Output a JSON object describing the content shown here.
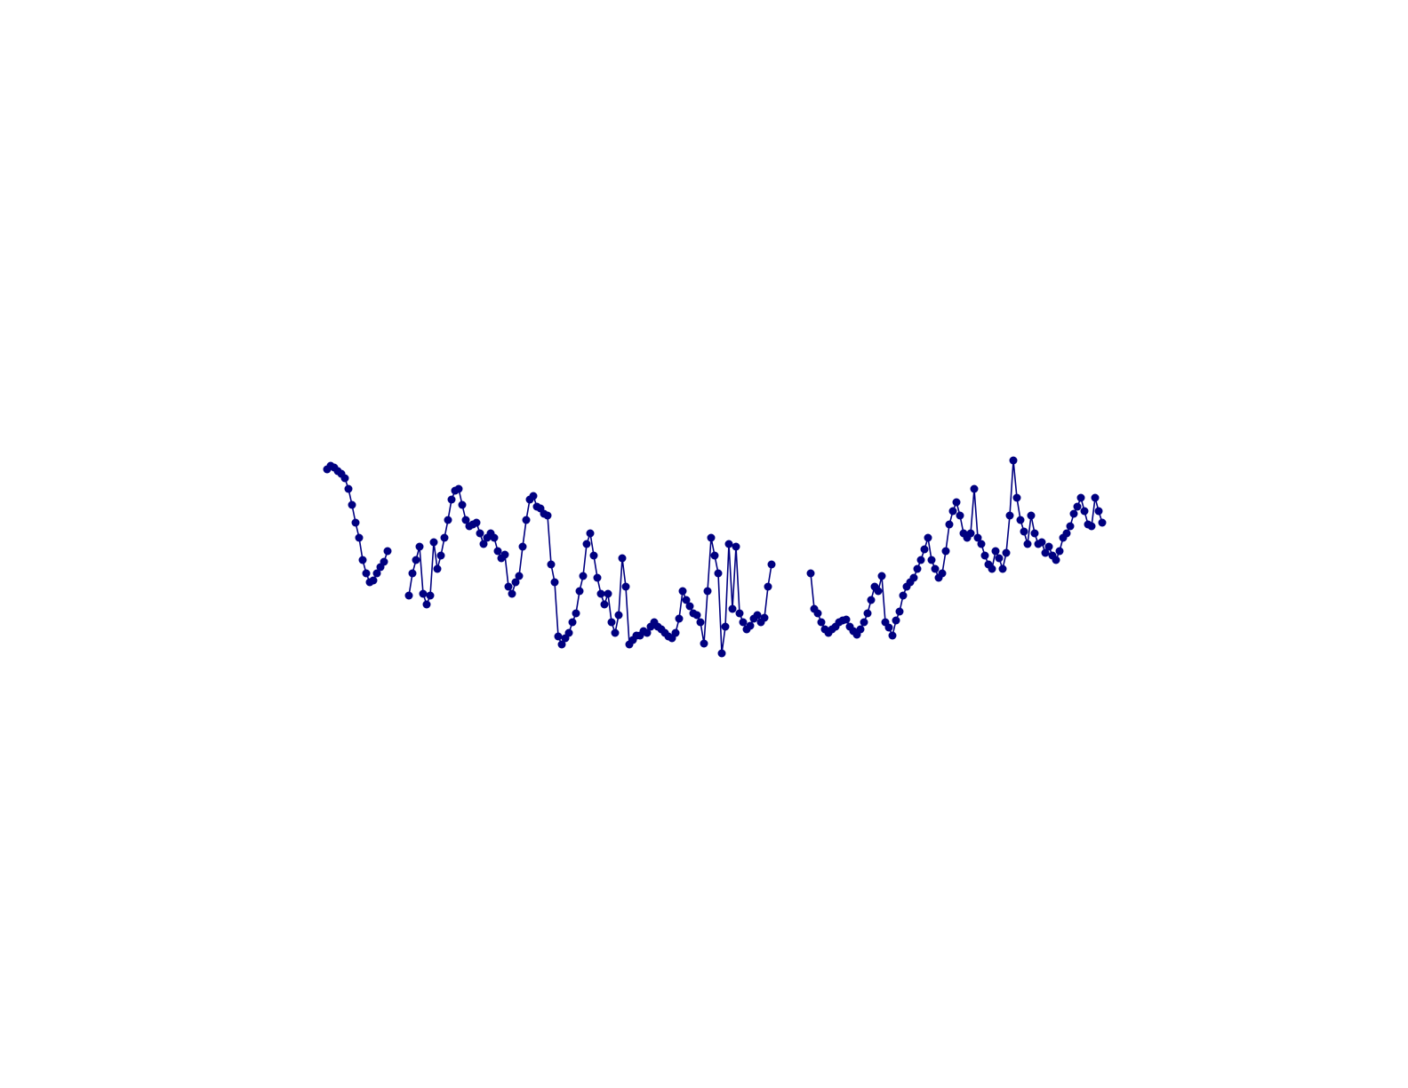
{
  "chart_data": {
    "type": "line",
    "color": "#000080",
    "marker": "circle",
    "ylim": [
      0,
      240
    ],
    "values": [
      212,
      216,
      214,
      210,
      207,
      202,
      190,
      172,
      152,
      135,
      110,
      95,
      85,
      87,
      95,
      102,
      108,
      120,
      null,
      null,
      null,
      null,
      null,
      70,
      95,
      110,
      125,
      72,
      60,
      70,
      130,
      100,
      115,
      135,
      155,
      178,
      188,
      190,
      172,
      155,
      148,
      150,
      152,
      140,
      128,
      135,
      140,
      135,
      120,
      112,
      116,
      80,
      72,
      85,
      92,
      125,
      155,
      178,
      182,
      170,
      168,
      162,
      160,
      105,
      85,
      24,
      15,
      22,
      28,
      40,
      50,
      75,
      92,
      128,
      140,
      115,
      90,
      72,
      60,
      72,
      40,
      28,
      48,
      112,
      80,
      15,
      20,
      25,
      25,
      30,
      28,
      35,
      40,
      35,
      32,
      28,
      24,
      22,
      28,
      44,
      75,
      65,
      58,
      50,
      48,
      40,
      16,
      75,
      135,
      115,
      95,
      5,
      35,
      128,
      55,
      125,
      50,
      40,
      32,
      36,
      44,
      48,
      40,
      45,
      80,
      105,
      null,
      null,
      null,
      null,
      null,
      null,
      null,
      null,
      null,
      null,
      95,
      55,
      50,
      40,
      32,
      28,
      32,
      35,
      40,
      42,
      43,
      35,
      30,
      26,
      32,
      40,
      50,
      65,
      80,
      75,
      92,
      40,
      34,
      25,
      42,
      52,
      70,
      80,
      85,
      90,
      100,
      110,
      122,
      135,
      110,
      100,
      90,
      95,
      120,
      150,
      165,
      175,
      160,
      140,
      135,
      140,
      190,
      135,
      128,
      115,
      105,
      100,
      120,
      112,
      100,
      118,
      160,
      222,
      180,
      155,
      142,
      128,
      160,
      140,
      128,
      130,
      118,
      125,
      115,
      110,
      120,
      135,
      140,
      148,
      162,
      170,
      180,
      165,
      150,
      148,
      180,
      165,
      152
    ]
  }
}
